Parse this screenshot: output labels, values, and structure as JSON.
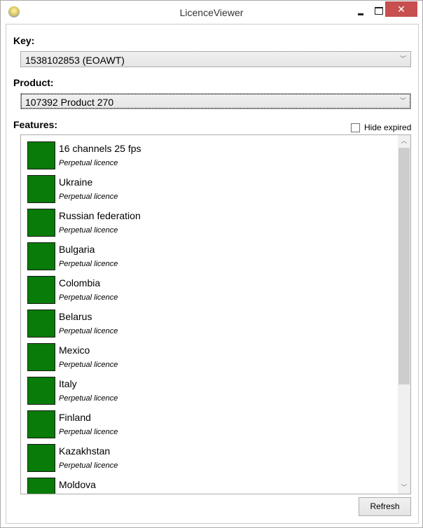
{
  "window": {
    "title": "LicenceViewer",
    "close_glyph": "✕"
  },
  "key": {
    "label": "Key:",
    "value": "1538102853 (EOAWT)"
  },
  "product": {
    "label": "Product:",
    "value": "107392 Product 270"
  },
  "features": {
    "label": "Features:",
    "hide_expired_label": "Hide expired",
    "hide_expired_checked": false,
    "status_color": "#087b08",
    "items": [
      {
        "name": "16 channels 25 fps",
        "status": "Perpetual licence"
      },
      {
        "name": "Ukraine",
        "status": "Perpetual licence"
      },
      {
        "name": "Russian federation",
        "status": "Perpetual licence"
      },
      {
        "name": "Bulgaria",
        "status": "Perpetual licence"
      },
      {
        "name": "Colombia",
        "status": "Perpetual licence"
      },
      {
        "name": "Belarus",
        "status": "Perpetual licence"
      },
      {
        "name": "Mexico",
        "status": "Perpetual licence"
      },
      {
        "name": "Italy",
        "status": "Perpetual licence"
      },
      {
        "name": "Finland",
        "status": "Perpetual licence"
      },
      {
        "name": "Kazakhstan",
        "status": "Perpetual licence"
      },
      {
        "name": "Moldova",
        "status": ""
      }
    ]
  },
  "refresh_label": "Refresh"
}
